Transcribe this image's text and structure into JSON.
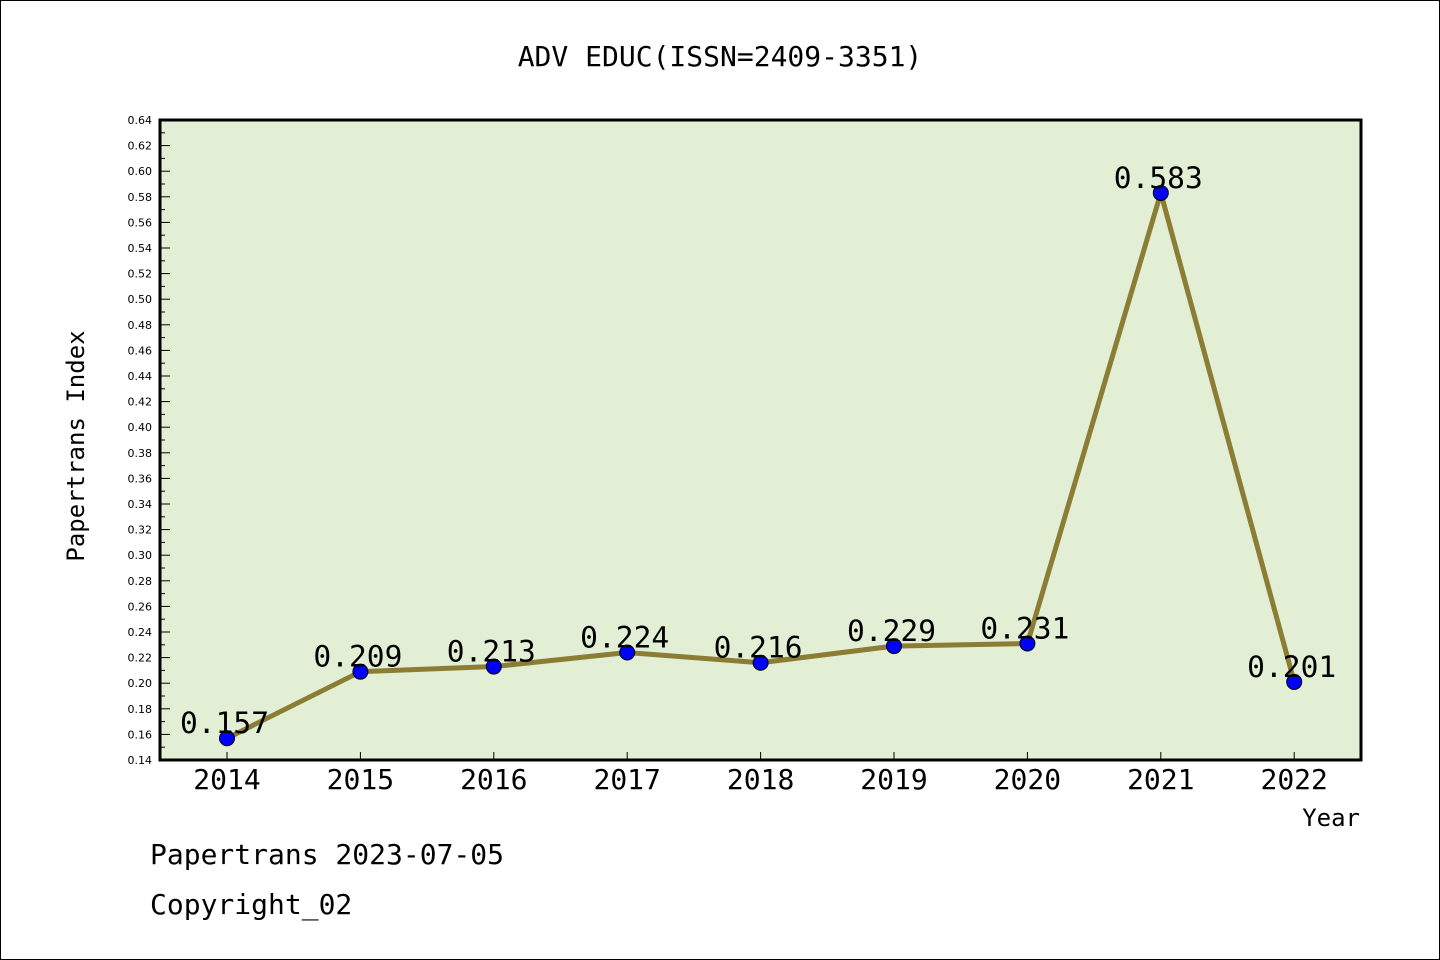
{
  "chart_data": {
    "type": "line",
    "title": "ADV EDUC(ISSN=2409-3351)",
    "xlabel": "Year",
    "ylabel": "Papertrans Index",
    "categories": [
      "2014",
      "2015",
      "2016",
      "2017",
      "2018",
      "2019",
      "2020",
      "2021",
      "2022"
    ],
    "series": [
      {
        "values": [
          0.157,
          0.209,
          0.213,
          0.224,
          0.216,
          0.229,
          0.231,
          0.583,
          0.201
        ],
        "labels": [
          "0.157",
          "0.209",
          "0.213",
          "0.224",
          "0.216",
          "0.229",
          "0.231",
          "0.583",
          "0.201"
        ],
        "line_color": "#8b7d34",
        "marker_color": "#0000ff"
      }
    ],
    "ylim": [
      0.14,
      0.64
    ],
    "yticks": [
      "0.14",
      "0.16",
      "0.18",
      "0.20",
      "0.22",
      "0.24",
      "0.26",
      "0.28",
      "0.30",
      "0.32",
      "0.34",
      "0.36",
      "0.38",
      "0.40",
      "0.42",
      "0.44",
      "0.46",
      "0.48",
      "0.50",
      "0.52",
      "0.54",
      "0.56",
      "0.58",
      "0.60",
      "0.62",
      "0.64"
    ],
    "grid": false,
    "legend": "none",
    "plot_background": "#e2efd5"
  },
  "footer": {
    "line1": "Papertrans 2023-07-05",
    "line2": "Copyright_02"
  }
}
